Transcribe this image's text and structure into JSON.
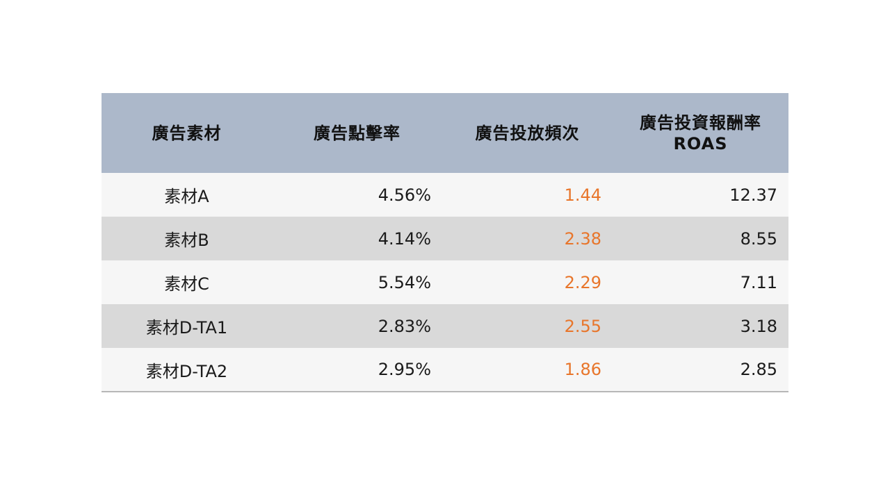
{
  "table": {
    "headers": {
      "material": "廣告素材",
      "ctr": "廣告點擊率",
      "frequency": "廣告投放頻次",
      "roas_line1": "廣告投資報酬率",
      "roas_line2": "ROAS"
    },
    "rows": [
      {
        "material": "素材A",
        "ctr": "4.56%",
        "frequency": "1.44",
        "roas": "12.37"
      },
      {
        "material": "素材B",
        "ctr": "4.14%",
        "frequency": "2.38",
        "roas": "8.55"
      },
      {
        "material": "素材C",
        "ctr": "5.54%",
        "frequency": "2.29",
        "roas": "7.11"
      },
      {
        "material": "素材D-TA1",
        "ctr": "2.83%",
        "frequency": "2.55",
        "roas": "3.18"
      },
      {
        "material": "素材D-TA2",
        "ctr": "2.95%",
        "frequency": "1.86",
        "roas": "2.85"
      }
    ],
    "colors": {
      "header_bg": "#acb8ca",
      "row_light": "#f6f6f6",
      "row_dark": "#d9d9d9",
      "frequency_text": "#e8752a"
    }
  }
}
